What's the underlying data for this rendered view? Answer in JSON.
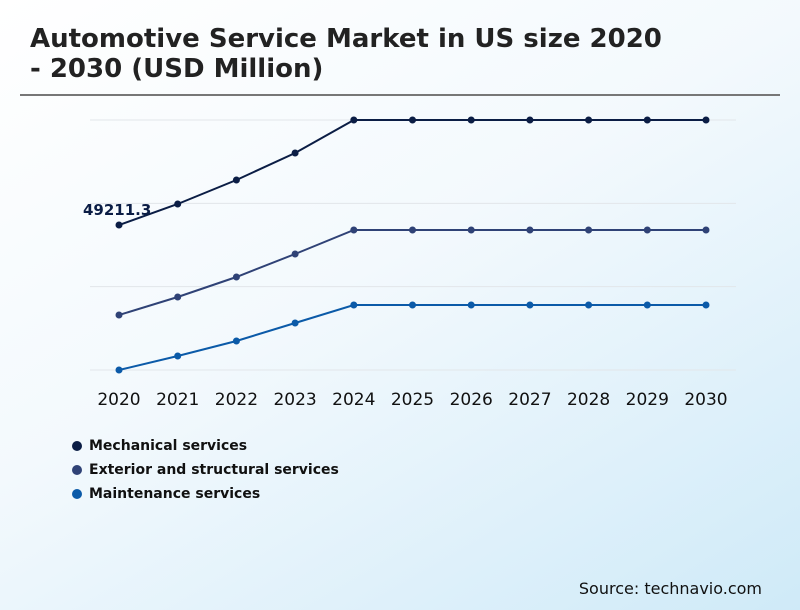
{
  "chart_data": {
    "type": "line",
    "title": "Automotive Service Market in US size 2020 - 2030 (USD Million)",
    "x": [
      "2020",
      "2021",
      "2022",
      "2023",
      "2024",
      "2025",
      "2026",
      "2027",
      "2028",
      "2029",
      "2030"
    ],
    "ylim": [
      0,
      84850
    ],
    "grid": true,
    "legend_position": "bottom-left",
    "annotations": [
      {
        "series": "Mechanical services",
        "x": "2020",
        "text": "49211.3"
      }
    ],
    "series": [
      {
        "name": "Mechanical services",
        "color": "#0b1d45",
        "values": [
          49211.3,
          56340,
          64490,
          73650,
          84850,
          84850,
          84850,
          84850,
          84850,
          84850,
          84850
        ]
      },
      {
        "name": "Exterior and structural services",
        "color": "#2f4276",
        "values": [
          18667,
          24776,
          31564,
          39370,
          47516,
          47516,
          47516,
          47516,
          47516,
          47516,
          47516
        ]
      },
      {
        "name": "Maintenance services",
        "color": "#0b5aa8",
        "values": [
          0,
          4752,
          9843,
          15952,
          22061,
          22061,
          22061,
          22061,
          22061,
          22061,
          22061
        ]
      }
    ]
  },
  "source": "Source: technavio.com"
}
